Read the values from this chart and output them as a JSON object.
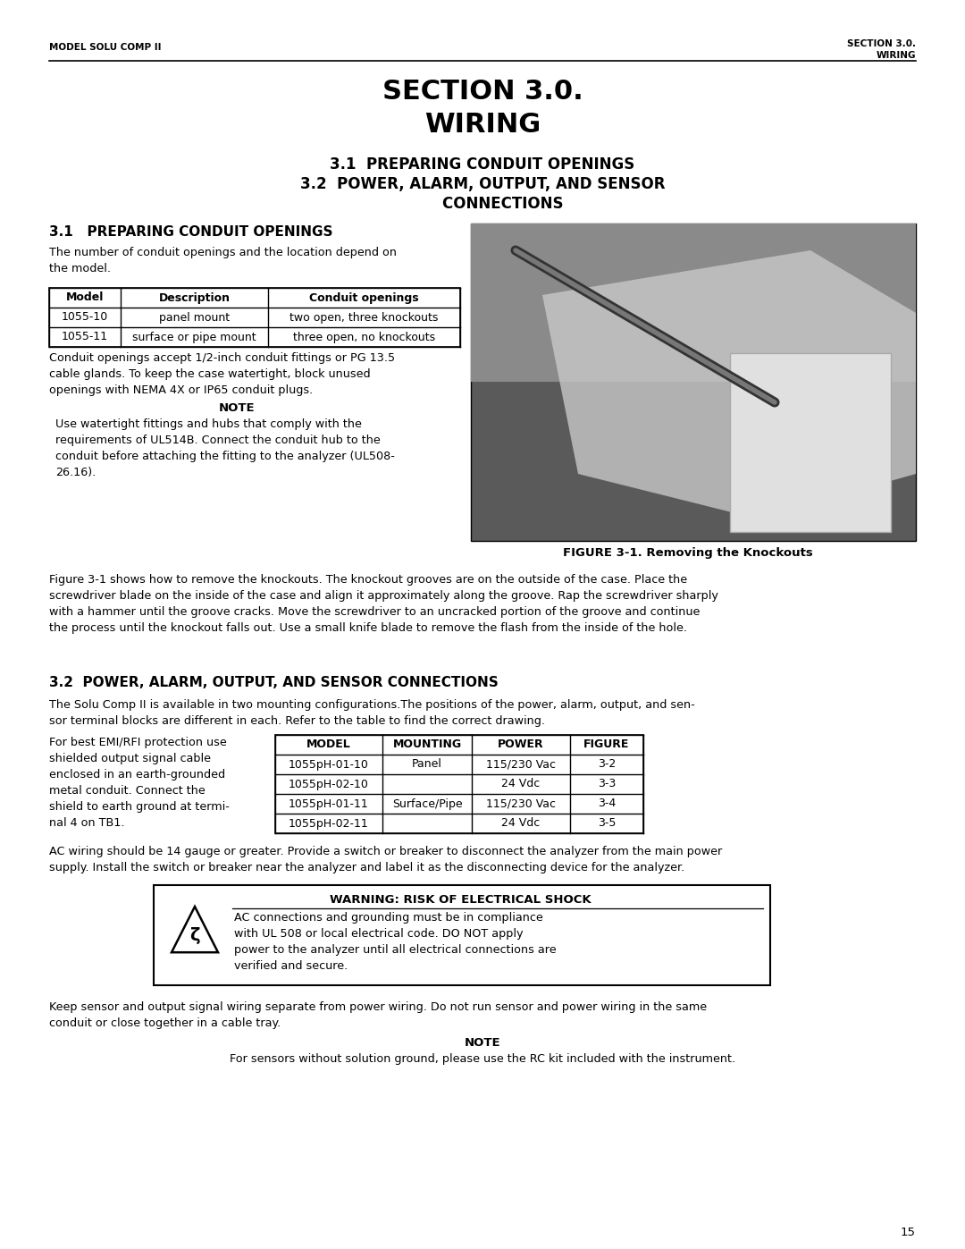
{
  "page_width": 10.8,
  "page_height": 13.97,
  "bg_color": "#ffffff",
  "header_left": "MODEL SOLU COMP II",
  "header_right_line1": "SECTION 3.0.",
  "header_right_line2": "WIRING",
  "main_title_line1": "SECTION 3.0.",
  "main_title_line2": "WIRING",
  "toc_line1": "3.1  PREPARING CONDUIT OPENINGS",
  "toc_line2": "3.2  POWER, ALARM, OUTPUT, AND SENSOR",
  "toc_line3": "        CONNECTIONS",
  "sec31_heading": "3.1   PREPARING CONDUIT OPENINGS",
  "sec31_intro": "The number of conduit openings and the location depend on\nthe model.",
  "table1_headers": [
    "Model",
    "Description",
    "Conduit openings"
  ],
  "table1_rows": [
    [
      "1055-10",
      "panel mount",
      "two open, three knockouts"
    ],
    [
      "1055-11",
      "surface or pipe mount",
      "three open, no knockouts"
    ]
  ],
  "sec31_para1": "Conduit openings accept 1/2-inch conduit fittings or PG 13.5\ncable glands. To keep the case watertight, block unused\nopenings with NEMA 4X or IP65 conduit plugs.",
  "note1_title": "NOTE",
  "note1_text": "Use watertight fittings and hubs that comply with the\nrequirements of UL514B. Connect the conduit hub to the\nconduit before attaching the fitting to the analyzer (UL508-\n26.16).",
  "figure1_caption": "FIGURE 3-1. Removing the Knockouts",
  "sec31_para2": "Figure 3-1 shows how to remove the knockouts. The knockout grooves are on the outside of the case. Place the\nscrewdriver blade on the inside of the case and align it approximately along the groove. Rap the screwdriver sharply\nwith a hammer until the groove cracks. Move the screwdriver to an uncracked portion of the groove and continue\nthe process until the knockout falls out. Use a small knife blade to remove the flash from the inside of the hole.",
  "sec32_heading": "3.2  POWER, ALARM, OUTPUT, AND SENSOR CONNECTIONS",
  "sec32_intro": "The Solu Comp II is available in two mounting configurations.The positions of the power, alarm, output, and sen-\nsor terminal blocks are different in each. Refer to the table to find the correct drawing.",
  "sec32_side_text": "For best EMI/RFI protection use\nshielded output signal cable\nenclosed in an earth-grounded\nmetal conduit. Connect the\nshield to earth ground at termi-\nnal 4 on TB1.",
  "table2_headers": [
    "MODEL",
    "MOUNTING",
    "POWER",
    "FIGURE"
  ],
  "table2_rows": [
    [
      "1055pH-01-10",
      "Panel",
      "115/230 Vac",
      "3-2"
    ],
    [
      "1055pH-02-10",
      "",
      "24 Vdc",
      "3-3"
    ],
    [
      "1055pH-01-11",
      "Surface/Pipe",
      "115/230 Vac",
      "3-4"
    ],
    [
      "1055pH-02-11",
      "",
      "24 Vdc",
      "3-5"
    ]
  ],
  "sec32_para1": "AC wiring should be 14 gauge or greater. Provide a switch or breaker to disconnect the analyzer from the main power\nsupply. Install the switch or breaker near the analyzer and label it as the disconnecting device for the analyzer.",
  "warning_title": "WARNING: RISK OF ELECTRICAL SHOCK",
  "warning_text": "AC connections and grounding must be in compliance\nwith UL 508 or local electrical code. DO NOT apply\npower to the analyzer until all electrical connections are\nverified and secure.",
  "sec32_para2": "Keep sensor and output signal wiring separate from power wiring. Do not run sensor and power wiring in the same\nconduit or close together in a cable tray.",
  "note2_title": "NOTE",
  "note2_text": "For sensors without solution ground, please use the RC kit included with the instrument.",
  "page_number": "15"
}
